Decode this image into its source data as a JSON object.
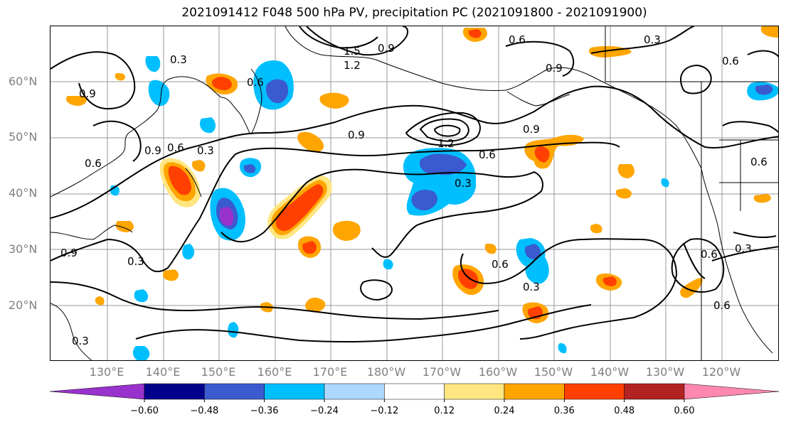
{
  "title": "2021091412 F048 500 hPa PV, precipitation PC (2021091800 - 2021091900)",
  "lat_labels": [
    "60°N",
    "50°N",
    "40°N",
    "30°N",
    "20°N"
  ],
  "lon_labels": [
    "130°E",
    "140°E",
    "150°E",
    "160°E",
    "170°E",
    "180°W",
    "170°W",
    "160°W",
    "150°W",
    "140°W",
    "130°W",
    "120°W"
  ],
  "contour_labels": [
    "0.3",
    "0.6",
    "0.9",
    "1.2",
    "1.5"
  ],
  "colorbar": {
    "ticks": [
      "−0.60",
      "−0.48",
      "−0.36",
      "−0.24",
      "−0.12",
      "0.12",
      "0.24",
      "0.36",
      "0.48",
      "0.60"
    ],
    "colors": [
      "#9932cc",
      "#00008b",
      "#3a5bd0",
      "#00bfff",
      "#add8ff",
      "#ffffff",
      "#ffe680",
      "#ffa500",
      "#ff4000",
      "#b22222",
      "#ff88b0"
    ]
  }
}
